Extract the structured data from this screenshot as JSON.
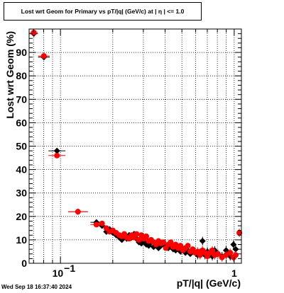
{
  "title": "Lost wrt Geom for Primary vs pT/|q| (GeV/c) at |  η  | <= 1.0",
  "timestamp": "Wed Sep 18 16:37:40 2024",
  "chart_data": {
    "type": "scatter",
    "title": "Lost wrt Geom for Primary vs pT/|q| (GeV/c) at |  η  | <= 1.0",
    "xlabel": "pT/|q| (GeV/c)",
    "ylabel": "Lost wrt Geom (%)",
    "xscale": "log",
    "xlim": [
      0.066,
      1.1
    ],
    "ylim": [
      0,
      100
    ],
    "grid": true,
    "x_tick_labels": [
      "10",
      "1"
    ],
    "y_ticks": [
      0,
      10,
      20,
      30,
      40,
      50,
      60,
      70,
      80,
      90
    ],
    "colors": {
      "series_a": "#000000",
      "series_b": "#ff0000"
    },
    "series": [
      {
        "marker": "diamond",
        "color": "#000000",
        "points": [
          {
            "x": 0.0702,
            "y": 98.0
          },
          {
            "x": 0.0803,
            "y": 88.0
          },
          {
            "x": 0.0955,
            "y": 48.0
          },
          {
            "x": 0.1261,
            "y": 22.0
          },
          {
            "x": 0.1611,
            "y": 17.5
          },
          {
            "x": 0.1735,
            "y": 16.0
          },
          {
            "x": 0.1838,
            "y": 13.5
          },
          {
            "x": 0.1919,
            "y": 14.5
          },
          {
            "x": 0.2004,
            "y": 13.0
          },
          {
            "x": 0.2092,
            "y": 12.0
          },
          {
            "x": 0.2184,
            "y": 11.0
          },
          {
            "x": 0.2256,
            "y": 10.0
          },
          {
            "x": 0.233,
            "y": 11.5
          },
          {
            "x": 0.2407,
            "y": 10.5
          },
          {
            "x": 0.2486,
            "y": 12.0
          },
          {
            "x": 0.2568,
            "y": 11.0
          },
          {
            "x": 0.2653,
            "y": 12.5
          },
          {
            "x": 0.274,
            "y": 10.5
          },
          {
            "x": 0.283,
            "y": 9.0
          },
          {
            "x": 0.2923,
            "y": 8.5
          },
          {
            "x": 0.302,
            "y": 9.5
          },
          {
            "x": 0.3119,
            "y": 8.0
          },
          {
            "x": 0.3222,
            "y": 7.5
          },
          {
            "x": 0.3328,
            "y": 9.0
          },
          {
            "x": 0.3437,
            "y": 7.0
          },
          {
            "x": 0.355,
            "y": 8.5
          },
          {
            "x": 0.3667,
            "y": 6.5
          },
          {
            "x": 0.3788,
            "y": 7.5
          },
          {
            "x": 0.3913,
            "y": 8.0
          },
          {
            "x": 0.4042,
            "y": 7.0
          },
          {
            "x": 0.4175,
            "y": 6.5
          },
          {
            "x": 0.4312,
            "y": 7.5
          },
          {
            "x": 0.4454,
            "y": 6.0
          },
          {
            "x": 0.4601,
            "y": 5.5
          },
          {
            "x": 0.4752,
            "y": 6.5
          },
          {
            "x": 0.4909,
            "y": 5.0
          },
          {
            "x": 0.5071,
            "y": 6.0
          },
          {
            "x": 0.5238,
            "y": 4.5
          },
          {
            "x": 0.541,
            "y": 5.5
          },
          {
            "x": 0.5588,
            "y": 4.0
          },
          {
            "x": 0.5772,
            "y": 5.0
          },
          {
            "x": 0.5962,
            "y": 4.5
          },
          {
            "x": 0.6159,
            "y": 3.5
          },
          {
            "x": 0.6362,
            "y": 4.5
          },
          {
            "x": 0.6572,
            "y": 9.5
          },
          {
            "x": 0.6788,
            "y": 3.5
          },
          {
            "x": 0.7012,
            "y": 5.0
          },
          {
            "x": 0.7243,
            "y": 4.0
          },
          {
            "x": 0.7482,
            "y": 3.0
          },
          {
            "x": 0.7728,
            "y": 5.5
          },
          {
            "x": 0.8062,
            "y": 4.0
          },
          {
            "x": 0.851,
            "y": 3.0
          },
          {
            "x": 0.8984,
            "y": 5.5
          },
          {
            "x": 0.9484,
            "y": 3.0
          },
          {
            "x": 0.9904,
            "y": 8.0
          },
          {
            "x": 1.0201,
            "y": 6.0
          }
        ]
      },
      {
        "marker": "circle",
        "color": "#ff0000",
        "points": [
          {
            "x": 0.0702,
            "y": 98.5
          },
          {
            "x": 0.0803,
            "y": 88.5
          },
          {
            "x": 0.0955,
            "y": 46.0
          },
          {
            "x": 0.1261,
            "y": 22.0
          },
          {
            "x": 0.1611,
            "y": 16.5
          },
          {
            "x": 0.1735,
            "y": 17.0
          },
          {
            "x": 0.1838,
            "y": 15.0
          },
          {
            "x": 0.1919,
            "y": 13.5
          },
          {
            "x": 0.2004,
            "y": 14.0
          },
          {
            "x": 0.2092,
            "y": 13.0
          },
          {
            "x": 0.2184,
            "y": 12.0
          },
          {
            "x": 0.2256,
            "y": 11.5
          },
          {
            "x": 0.233,
            "y": 12.5
          },
          {
            "x": 0.2407,
            "y": 11.0
          },
          {
            "x": 0.2486,
            "y": 10.5
          },
          {
            "x": 0.2568,
            "y": 12.0
          },
          {
            "x": 0.2653,
            "y": 11.0
          },
          {
            "x": 0.274,
            "y": 12.5
          },
          {
            "x": 0.283,
            "y": 10.0
          },
          {
            "x": 0.2923,
            "y": 12.0
          },
          {
            "x": 0.302,
            "y": 10.5
          },
          {
            "x": 0.3119,
            "y": 11.5
          },
          {
            "x": 0.3222,
            "y": 9.5
          },
          {
            "x": 0.3328,
            "y": 10.0
          },
          {
            "x": 0.3437,
            "y": 9.0
          },
          {
            "x": 0.355,
            "y": 8.0
          },
          {
            "x": 0.3667,
            "y": 9.5
          },
          {
            "x": 0.3788,
            "y": 8.5
          },
          {
            "x": 0.3913,
            "y": 9.0
          },
          {
            "x": 0.4042,
            "y": 6.5
          },
          {
            "x": 0.4175,
            "y": 8.0
          },
          {
            "x": 0.4312,
            "y": 9.0
          },
          {
            "x": 0.4454,
            "y": 7.0
          },
          {
            "x": 0.4601,
            "y": 8.0
          },
          {
            "x": 0.4752,
            "y": 6.5
          },
          {
            "x": 0.4909,
            "y": 7.5
          },
          {
            "x": 0.5071,
            "y": 5.5
          },
          {
            "x": 0.5238,
            "y": 6.5
          },
          {
            "x": 0.541,
            "y": 7.5
          },
          {
            "x": 0.5588,
            "y": 5.0
          },
          {
            "x": 0.5772,
            "y": 6.0
          },
          {
            "x": 0.5962,
            "y": 4.5
          },
          {
            "x": 0.6159,
            "y": 5.0
          },
          {
            "x": 0.6362,
            "y": 3.5
          },
          {
            "x": 0.6572,
            "y": 5.5
          },
          {
            "x": 0.6788,
            "y": 4.5
          },
          {
            "x": 0.7012,
            "y": 3.0
          },
          {
            "x": 0.7243,
            "y": 4.5
          },
          {
            "x": 0.7482,
            "y": 5.5
          },
          {
            "x": 0.7728,
            "y": 3.5
          },
          {
            "x": 0.8062,
            "y": 4.0
          },
          {
            "x": 0.851,
            "y": 2.5
          },
          {
            "x": 0.8984,
            "y": 3.5
          },
          {
            "x": 0.9484,
            "y": 4.5
          },
          {
            "x": 0.9904,
            "y": 2.5
          },
          {
            "x": 1.0201,
            "y": 3.5
          },
          {
            "x": 1.07,
            "y": 13.0
          }
        ]
      }
    ]
  }
}
